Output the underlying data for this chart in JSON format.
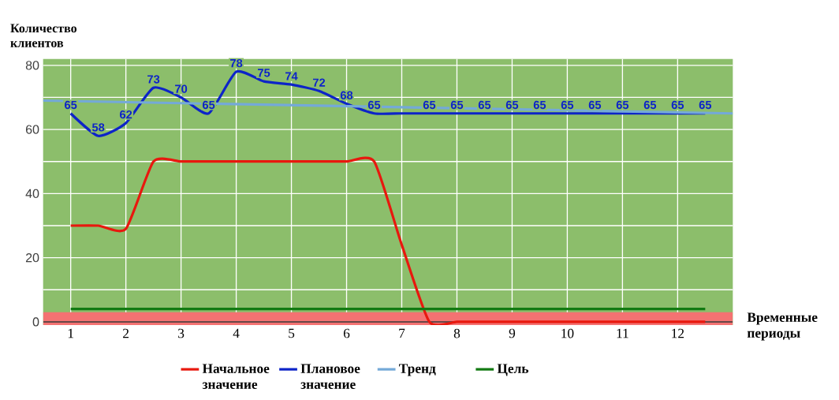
{
  "chart_data": {
    "type": "line",
    "xlabel": "Временные периоды",
    "ylabel": "Количество клиентов",
    "xlim": [
      0.5,
      13
    ],
    "xticks": [
      1,
      2,
      3,
      4,
      5,
      6,
      7,
      8,
      9,
      10,
      11,
      12
    ],
    "ylim": [
      -1,
      82
    ],
    "yticks": [
      0,
      {
        "value": 10,
        "label": null
      },
      20,
      {
        "value": 30,
        "label": null
      },
      40,
      {
        "value": 50,
        "label": null
      },
      60,
      {
        "value": 70,
        "label": null
      },
      80
    ],
    "grid": true,
    "legend": "bottom",
    "marker": "none",
    "line_style": "solid",
    "bands": [
      {
        "axis": "y",
        "from": -1,
        "to": 3,
        "color": "#f47272"
      }
    ],
    "ref_lines": [
      {
        "axis": "y",
        "value": 0,
        "color": "#3a3a3a"
      }
    ],
    "series": [
      {
        "name": "Начальное значение",
        "color": "#e8180e",
        "x": [
          1,
          1.5,
          2,
          2.5,
          3,
          3.5,
          4,
          4.5,
          5,
          5.5,
          6,
          6.5,
          7,
          7.5,
          8,
          8.5,
          9,
          9.5,
          10,
          10.5,
          11,
          11.5,
          12,
          12.5
        ],
        "values": [
          30,
          30,
          29,
          50,
          50,
          50,
          50,
          50,
          50,
          50,
          50,
          50,
          24,
          0,
          0,
          0,
          0,
          0,
          0,
          0,
          0,
          0,
          0,
          0
        ]
      },
      {
        "name": "Плановое значение",
        "color": "#0d24c8",
        "x": [
          1,
          1.5,
          2,
          2.5,
          3,
          3.5,
          4,
          4.5,
          5,
          5.5,
          6,
          6.5,
          7,
          7.5,
          8,
          8.5,
          9,
          9.5,
          10,
          10.5,
          11,
          11.5,
          12,
          12.5
        ],
        "values": [
          65,
          58,
          62,
          73,
          70,
          65,
          78,
          75,
          74,
          72,
          68,
          65,
          65,
          65,
          65,
          65,
          65,
          65,
          65,
          65,
          65,
          65,
          65,
          65
        ],
        "value_labels": [
          "65",
          "58",
          "62",
          "73",
          "70",
          "65",
          "78",
          "75",
          "74",
          "72",
          "68",
          "65",
          null,
          "65",
          "65",
          "65",
          "65",
          "65",
          "65",
          "65",
          "65",
          "65",
          "65",
          "65"
        ]
      },
      {
        "name": "Тренд",
        "color": "#74a9d8",
        "x": [
          0.5,
          13
        ],
        "values": [
          69,
          65
        ]
      },
      {
        "name": "Цель",
        "color": "#127a12",
        "x": [
          1,
          12.5
        ],
        "values": [
          4,
          4
        ]
      }
    ]
  }
}
